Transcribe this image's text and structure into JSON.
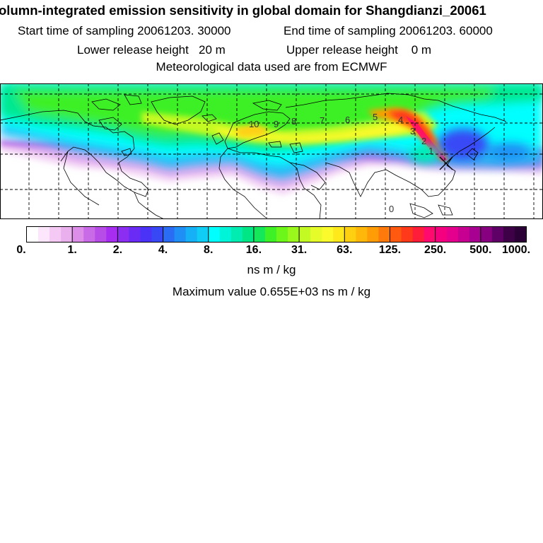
{
  "header": {
    "title": "olumn-integrated emission sensitivity in global domain for Shangdianzi_20061",
    "start_label": "Start time of sampling 20061203. 30000",
    "end_label": "End time of sampling 20061203. 60000",
    "lower_label": "Lower release height   20 m",
    "upper_label": "Upper release height    0 m",
    "met_label": "Meteorological data used are from ECMWF"
  },
  "map": {
    "colors": {
      "land_white": "#ffffff",
      "coastline": "#000000",
      "grid": "#000000",
      "hotspot": "#ff2a3a"
    },
    "day_markers": [
      "10",
      "9",
      "8",
      "7",
      "6",
      "5",
      "4",
      "3",
      "2",
      "1",
      "0"
    ],
    "release_site_marker": "x-cross"
  },
  "colorbar": {
    "colors": [
      "#ffffff",
      "#fbe6fb",
      "#f4c9f4",
      "#eab0ee",
      "#dc8ee8",
      "#c96be6",
      "#b84ce6",
      "#a72df0",
      "#8c2ef2",
      "#6a2cf5",
      "#4a32f6",
      "#3848f5",
      "#2a6cf4",
      "#1f8ff5",
      "#16b0f6",
      "#10cdf6",
      "#00ffff",
      "#00f4d8",
      "#00ecb0",
      "#00e684",
      "#14e85a",
      "#3ef026",
      "#6cf61a",
      "#9af81c",
      "#c4fa24",
      "#e6fb2a",
      "#fafa2c",
      "#ffe81c",
      "#ffd012",
      "#ffb80a",
      "#ff9c06",
      "#ff7a0a",
      "#ff5a10",
      "#ff3a1a",
      "#ff1e3a",
      "#ff0a6e",
      "#f5007e",
      "#e4008c",
      "#c80092",
      "#a80090",
      "#860080",
      "#5e0066",
      "#3e0046",
      "#2a0036"
    ],
    "tick_labels": [
      "0.",
      "1.",
      "2.",
      "4.",
      "8.",
      "16.",
      "31.",
      "63.",
      "125.",
      "250.",
      "500.",
      "1000."
    ],
    "units": "ns m / kg",
    "max_label": "Maximum value  0.655E+03 ns m / kg"
  }
}
